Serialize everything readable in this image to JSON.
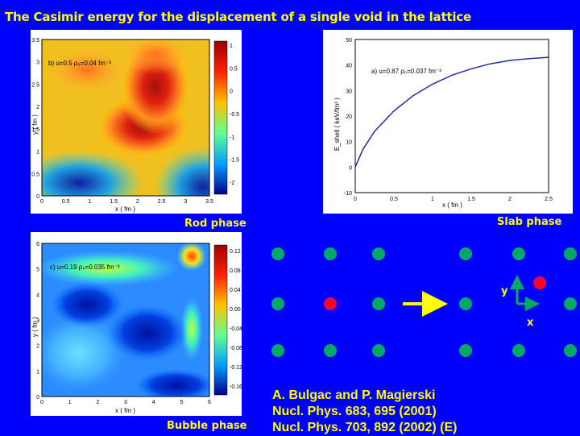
{
  "slide": {
    "title": "The Casimir energy for the displacement of a single void in the lattice",
    "colors": {
      "background": "#0000ff",
      "text": "#ffff00",
      "lattice": "#00aa66",
      "void": "#ff0033",
      "arrow": "#ffff00"
    }
  },
  "rod_panel": {
    "caption": "Rod phase",
    "annotation": "b) u=0.5 ρ₀=0.04 fm⁻³",
    "xlabel": "x ( fm )",
    "ylabel": "y ( fm )",
    "xticks": [
      "0",
      "0.5",
      "1",
      "1.5",
      "2",
      "2.5",
      "3",
      "3.5"
    ],
    "yticks": [
      "0",
      "0.5",
      "1",
      "1.5",
      "2",
      "2.5",
      "3",
      "3.5"
    ],
    "colorbar_ticks": [
      "1",
      "0.5",
      "0",
      "-0.5",
      "-1",
      "-1.5",
      "-2"
    ]
  },
  "slab_panel": {
    "caption": "Slab phase",
    "annotation": "a) u=0.87 ρ₀=0.037 fm⁻³",
    "xlabel": "x ( fm )",
    "ylabel": "E_shell ( keV/fm² )",
    "xticks": [
      "0",
      "0.5",
      "1",
      "1.5",
      "2",
      "2.5"
    ],
    "yticks": [
      "50",
      "40",
      "30",
      "20",
      "10",
      "0",
      "-10"
    ]
  },
  "bubble_panel": {
    "caption": "Bubble phase",
    "annotation": "c) u=0.19 ρ₀=0.035 fm⁻³",
    "xlabel": "x ( fm )",
    "ylabel": "y ( fm )",
    "xticks": [
      "0",
      "1",
      "2",
      "3",
      "4",
      "5",
      "6"
    ],
    "yticks": [
      "0",
      "1",
      "2",
      "3",
      "4",
      "5",
      "6"
    ],
    "colorbar_ticks": [
      "0.12",
      "0.08",
      "0.04",
      "0.00",
      "-0.04",
      "-0.08",
      "-0.12",
      "-0.16"
    ]
  },
  "lattice": {
    "axis_y": "y",
    "axis_x": "x"
  },
  "reference": {
    "authors": "A. Bulgac and P. Magierski",
    "line1": "Nucl. Phys. 683, 695 (2001)",
    "line2": "Nucl. Phys. 703, 892 (2002) (E)"
  },
  "chart_data": [
    {
      "type": "heatmap",
      "title": "b) u=0.5 ρ₀=0.04 fm⁻³",
      "xlabel": "x ( fm )",
      "ylabel": "y ( fm )",
      "xlim": [
        0,
        3.5
      ],
      "ylim": [
        0,
        3.5
      ],
      "color_range": [
        -2,
        1.2
      ],
      "features": [
        {
          "x": 2.4,
          "y": 2.4,
          "level": "max"
        },
        {
          "x": 3.3,
          "y": 0.4,
          "level": "min"
        },
        {
          "x": 0.4,
          "y": 0.4,
          "level": "low"
        }
      ]
    },
    {
      "type": "line",
      "title": "a) u=0.87 ρ₀=0.037 fm⁻³",
      "xlabel": "x ( fm )",
      "ylabel": "E_shell ( keV/fm² )",
      "xlim": [
        0,
        2.5
      ],
      "ylim": [
        -10,
        50
      ],
      "series": [
        {
          "x": [
            0,
            0.1,
            0.25,
            0.5,
            0.75,
            1.0,
            1.25,
            1.5,
            1.75,
            2.0,
            2.25,
            2.5
          ],
          "values": [
            0,
            7,
            14,
            22,
            28,
            32.5,
            36,
            38.5,
            40.5,
            41.8,
            42.5,
            43
          ]
        }
      ]
    },
    {
      "type": "heatmap",
      "title": "c) u=0.19 ρ₀=0.035 fm⁻³",
      "xlabel": "x ( fm )",
      "ylabel": "y ( fm )",
      "xlim": [
        0,
        6
      ],
      "ylim": [
        0,
        6
      ],
      "color_range": [
        -0.16,
        0.12
      ],
      "features": [
        {
          "x": 5.6,
          "y": 5.6,
          "level": "max"
        },
        {
          "x": 1.5,
          "y": 3.8,
          "level": "min"
        },
        {
          "x": 3.8,
          "y": 2.7,
          "level": "min"
        }
      ]
    }
  ]
}
